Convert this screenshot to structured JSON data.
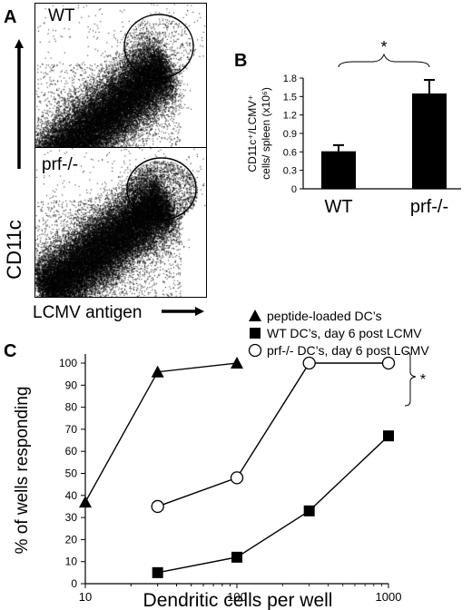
{
  "panels": {
    "a": "A",
    "b": "B",
    "c": "C"
  },
  "panel_a": {
    "plots": [
      {
        "label": "WT"
      },
      {
        "label": "prf-/-"
      }
    ],
    "y_axis_label": "CD11c",
    "x_axis_label": "LCMV antigen"
  },
  "chart_data": [
    {
      "type": "bar",
      "categories": [
        "WT",
        "prf-/-"
      ],
      "values": [
        0.61,
        1.55
      ],
      "errors": [
        0.1,
        0.22
      ],
      "title": "",
      "xlabel": "",
      "ylabel": "CD11c+/LCMV+ cells/ spleen (x10^6)",
      "ylabel_lines": [
        "CD11c⁺/LCMV⁺",
        "cells/ spleen (x10⁶)"
      ],
      "ylim": [
        0,
        1.8
      ],
      "yticks": [
        "0",
        "0.3",
        "0.6",
        "0.9",
        "1.2",
        "1.5",
        "1.8"
      ],
      "significance": "*",
      "bar_color": "#000000",
      "grid": false
    },
    {
      "type": "line",
      "xscale": "log",
      "xlabel": "Dendritic cells per well",
      "ylabel": "% of wells responding",
      "xlim": [
        10,
        1000
      ],
      "ylim": [
        0,
        100
      ],
      "xticks": [
        "10",
        "100",
        "1000"
      ],
      "yticks": [
        "0",
        "10",
        "20",
        "30",
        "40",
        "50",
        "60",
        "70",
        "80",
        "90",
        "100"
      ],
      "legend_position": "top-right",
      "significance": "*",
      "grid": false,
      "series": [
        {
          "name": "peptide-loaded DC’s",
          "marker": "triangle",
          "x": [
            10,
            30,
            100
          ],
          "y": [
            37,
            96,
            100
          ]
        },
        {
          "name": "WT DC’s, day 6 post LCMV",
          "marker": "square",
          "x": [
            30,
            100,
            300,
            1000
          ],
          "y": [
            5,
            12,
            33,
            67
          ]
        },
        {
          "name": "prf-/- DC’s, day 6 post LCMV",
          "marker": "circle",
          "x": [
            30,
            100,
            300,
            1000
          ],
          "y": [
            35,
            48,
            100,
            100
          ]
        }
      ]
    }
  ]
}
